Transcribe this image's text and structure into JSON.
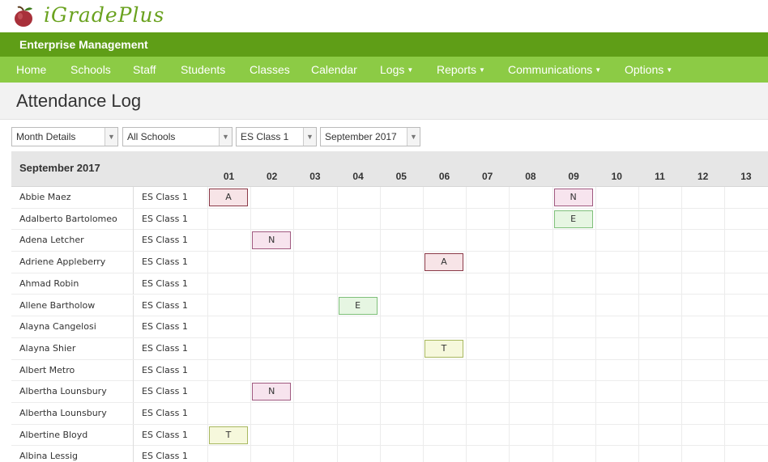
{
  "app": {
    "logo_text": "iGradePlus",
    "section": "Enterprise Management"
  },
  "nav": [
    {
      "label": "Home",
      "caret": false
    },
    {
      "label": "Schools",
      "caret": false
    },
    {
      "label": "Staff",
      "caret": false
    },
    {
      "label": "Students",
      "caret": false
    },
    {
      "label": "Classes",
      "caret": false
    },
    {
      "label": "Calendar",
      "caret": false
    },
    {
      "label": "Logs",
      "caret": true
    },
    {
      "label": "Reports",
      "caret": true
    },
    {
      "label": "Communications",
      "caret": true
    },
    {
      "label": "Options",
      "caret": true
    }
  ],
  "page_title": "Attendance Log",
  "filters": {
    "view": "Month Details",
    "school": "All Schools",
    "class": "ES Class 1",
    "month": "September 2017"
  },
  "grid": {
    "month": "September 2017",
    "days": [
      "01",
      "02",
      "03",
      "04",
      "05",
      "06",
      "07",
      "08",
      "09",
      "10",
      "11",
      "12",
      "13"
    ],
    "students": [
      {
        "name": "Abbie Maez",
        "class": "ES Class 1",
        "marks": [
          {
            "day": "01",
            "code": "A"
          },
          {
            "day": "09",
            "code": "N"
          }
        ]
      },
      {
        "name": "Adalberto Bartolomeo",
        "class": "ES Class 1",
        "marks": [
          {
            "day": "09",
            "code": "E"
          }
        ]
      },
      {
        "name": "Adena Letcher",
        "class": "ES Class 1",
        "marks": [
          {
            "day": "02",
            "code": "N"
          }
        ]
      },
      {
        "name": "Adriene Appleberry",
        "class": "ES Class 1",
        "marks": [
          {
            "day": "06",
            "code": "A"
          }
        ]
      },
      {
        "name": "Ahmad Robin",
        "class": "ES Class 1",
        "marks": []
      },
      {
        "name": "Allene Bartholow",
        "class": "ES Class 1",
        "marks": [
          {
            "day": "04",
            "code": "E"
          }
        ]
      },
      {
        "name": "Alayna Cangelosi",
        "class": "ES Class 1",
        "marks": []
      },
      {
        "name": "Alayna Shier",
        "class": "ES Class 1",
        "marks": [
          {
            "day": "06",
            "code": "T"
          }
        ]
      },
      {
        "name": "Albert Metro",
        "class": "ES Class 1",
        "marks": []
      },
      {
        "name": "Albertha Lounsbury",
        "class": "ES Class 1",
        "marks": [
          {
            "day": "02",
            "code": "N"
          }
        ]
      },
      {
        "name": "Albertha Lounsbury",
        "class": "ES Class 1",
        "marks": []
      },
      {
        "name": "Albertine Bloyd",
        "class": "ES Class 1",
        "marks": [
          {
            "day": "01",
            "code": "T"
          }
        ]
      },
      {
        "name": "Albina Lessig",
        "class": "ES Class 1",
        "marks": []
      }
    ]
  },
  "mark_styles": {
    "A": {
      "bg": "#f7e4e7",
      "border": "#8b3a48"
    },
    "N": {
      "bg": "#f7e4ee",
      "border": "#a05a80"
    },
    "E": {
      "bg": "#e6f6e2",
      "border": "#7fc07a"
    },
    "T": {
      "bg": "#f6f8dc",
      "border": "#a8b860"
    }
  }
}
